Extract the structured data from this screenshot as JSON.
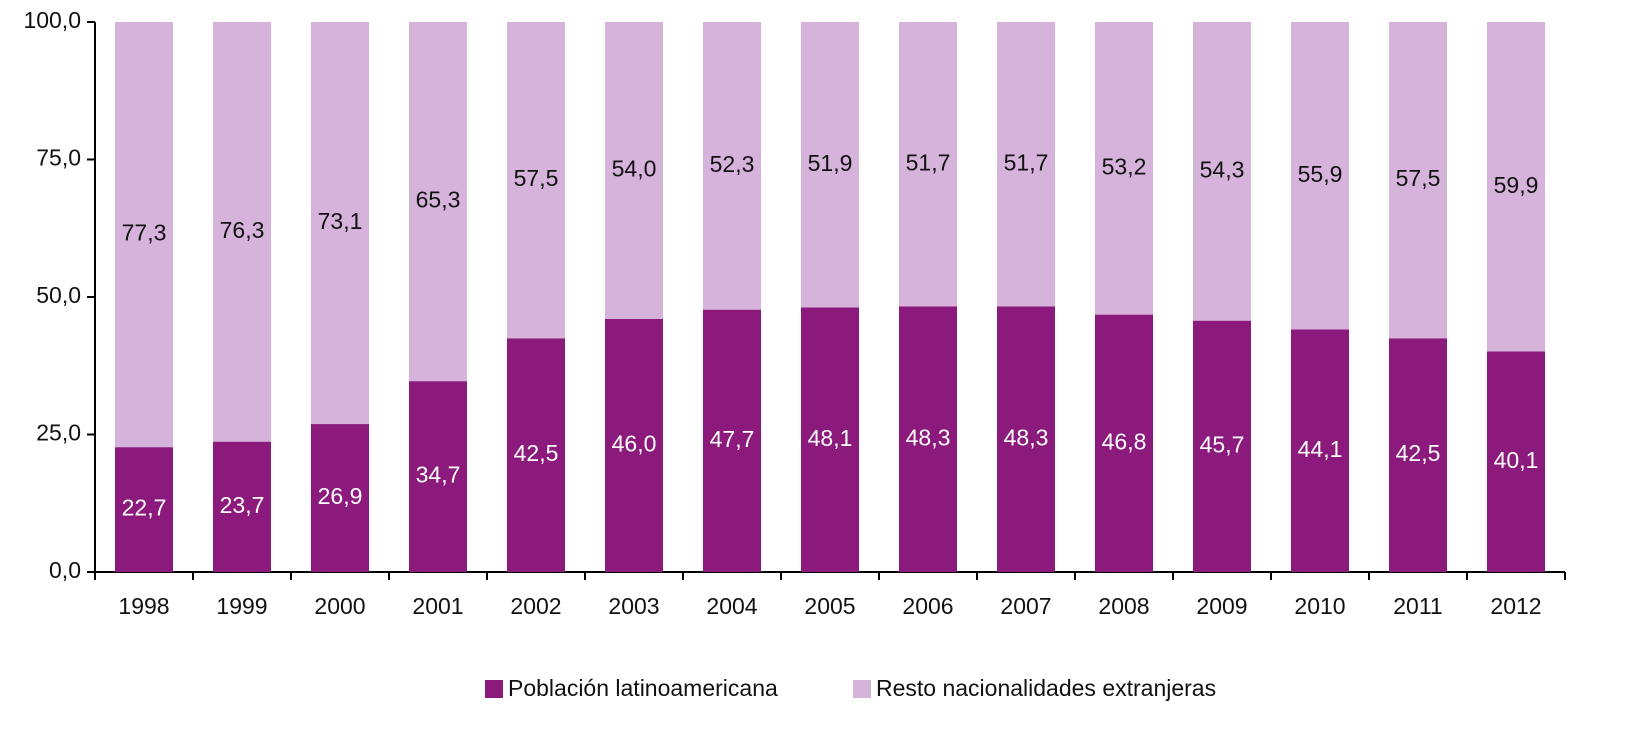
{
  "chart_data": {
    "type": "stacked_bar",
    "categories": [
      "1998",
      "1999",
      "2000",
      "2001",
      "2002",
      "2003",
      "2004",
      "2005",
      "2006",
      "2007",
      "2008",
      "2009",
      "2010",
      "2011",
      "2012"
    ],
    "series": [
      {
        "name": "Población latinoamericana",
        "color": "#8b1a7c",
        "values": [
          22.7,
          23.7,
          26.9,
          34.7,
          42.5,
          46.0,
          47.7,
          48.1,
          48.3,
          48.3,
          46.8,
          45.7,
          44.1,
          42.5,
          40.1
        ],
        "value_labels": [
          "22,7",
          "23,7",
          "26,9",
          "34,7",
          "42,5",
          "46,0",
          "47,7",
          "48,1",
          "48,3",
          "48,3",
          "46,8",
          "45,7",
          "44,1",
          "42,5",
          "40,1"
        ]
      },
      {
        "name": "Resto nacionalidades extranjeras",
        "color": "#d6b3db",
        "values": [
          77.3,
          76.3,
          73.1,
          65.3,
          57.5,
          54.0,
          52.3,
          51.9,
          51.7,
          51.7,
          53.2,
          54.3,
          55.9,
          57.5,
          59.9
        ],
        "value_labels": [
          "77,3",
          "76,3",
          "73,1",
          "65,3",
          "57,5",
          "54,0",
          "52,3",
          "51,9",
          "51,7",
          "51,7",
          "53,2",
          "54,3",
          "55,9",
          "57,5",
          "59,9"
        ]
      }
    ],
    "ylim": [
      0,
      100
    ],
    "yticks": [
      {
        "value": 0,
        "label": "0,0"
      },
      {
        "value": 25,
        "label": "25,0"
      },
      {
        "value": 50,
        "label": "50,0"
      },
      {
        "value": 75,
        "label": "75,0"
      },
      {
        "value": 100,
        "label": "100,0"
      }
    ],
    "grid": false,
    "legend": "bottom"
  }
}
